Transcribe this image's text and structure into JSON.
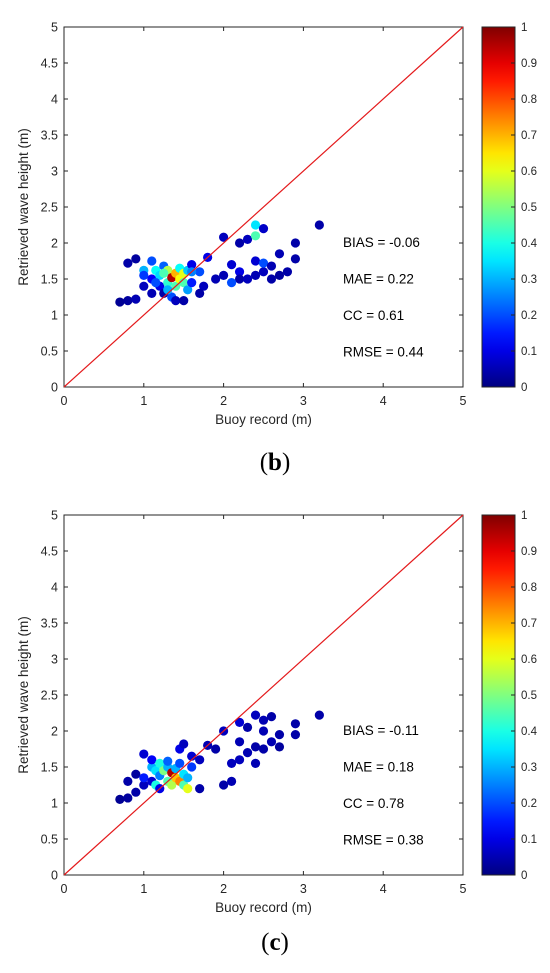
{
  "chart_data": [
    {
      "type": "scatter",
      "caption": "(b)",
      "xlabel": "Buoy record (m)",
      "ylabel": "Retrieved wave height (m)",
      "xlim": [
        0,
        5
      ],
      "ylim": [
        0,
        5
      ],
      "xticks": [
        "0",
        "1",
        "2",
        "3",
        "4",
        "5"
      ],
      "yticks": [
        "0",
        "0.5",
        "1",
        "1.5",
        "2",
        "2.5",
        "3",
        "3.5",
        "4",
        "4.5",
        "5"
      ],
      "reference_line": "y = x",
      "reference_color": "#e41a1c",
      "colormap": "jet",
      "colorbar_ticks": [
        "0",
        "0.1",
        "0.2",
        "0.3",
        "0.4",
        "0.5",
        "0.6",
        "0.7",
        "0.8",
        "0.9",
        "1"
      ],
      "stats": [
        "BIAS = -0.06",
        "MAE = 0.22",
        "CC = 0.61",
        "RMSE = 0.44"
      ],
      "points": [
        [
          0.7,
          1.18,
          0.02
        ],
        [
          0.8,
          1.2,
          0.03
        ],
        [
          0.9,
          1.22,
          0.05
        ],
        [
          0.8,
          1.72,
          0.04
        ],
        [
          0.9,
          1.78,
          0.03
        ],
        [
          1.0,
          1.4,
          0.06
        ],
        [
          1.0,
          1.62,
          0.3
        ],
        [
          1.0,
          1.55,
          0.18
        ],
        [
          1.1,
          1.3,
          0.05
        ],
        [
          1.1,
          1.5,
          0.12
        ],
        [
          1.1,
          1.75,
          0.2
        ],
        [
          1.15,
          1.62,
          0.38
        ],
        [
          1.2,
          1.4,
          0.1
        ],
        [
          1.2,
          1.55,
          0.34
        ],
        [
          1.25,
          1.68,
          0.22
        ],
        [
          1.25,
          1.3,
          0.04
        ],
        [
          1.3,
          1.45,
          0.42
        ],
        [
          1.3,
          1.62,
          0.55
        ],
        [
          1.35,
          1.52,
          0.95
        ],
        [
          1.35,
          1.25,
          0.2
        ],
        [
          1.4,
          1.58,
          0.7
        ],
        [
          1.4,
          1.4,
          0.45
        ],
        [
          1.45,
          1.5,
          0.62
        ],
        [
          1.45,
          1.65,
          0.38
        ],
        [
          1.5,
          1.45,
          0.45
        ],
        [
          1.5,
          1.58,
          0.6
        ],
        [
          1.55,
          1.35,
          0.28
        ],
        [
          1.55,
          1.62,
          0.32
        ],
        [
          1.4,
          1.2,
          0.06
        ],
        [
          1.5,
          1.2,
          0.04
        ],
        [
          1.6,
          1.45,
          0.15
        ],
        [
          1.6,
          1.7,
          0.1
        ],
        [
          1.7,
          1.6,
          0.2
        ],
        [
          1.75,
          1.4,
          0.06
        ],
        [
          1.7,
          1.3,
          0.04
        ],
        [
          1.8,
          1.8,
          0.1
        ],
        [
          2.0,
          2.08,
          0.06
        ],
        [
          2.0,
          1.55,
          0.05
        ],
        [
          2.1,
          1.7,
          0.08
        ],
        [
          2.2,
          1.6,
          0.1
        ],
        [
          2.2,
          1.5,
          0.04
        ],
        [
          2.2,
          2.0,
          0.04
        ],
        [
          2.1,
          1.45,
          0.2
        ],
        [
          2.3,
          2.05,
          0.06
        ],
        [
          2.4,
          2.25,
          0.35
        ],
        [
          2.4,
          2.1,
          0.45
        ],
        [
          2.4,
          1.75,
          0.08
        ],
        [
          2.5,
          1.6,
          0.06
        ],
        [
          2.5,
          2.2,
          0.07
        ],
        [
          2.5,
          1.72,
          0.2
        ],
        [
          2.6,
          1.68,
          0.05
        ],
        [
          2.6,
          1.5,
          0.04
        ],
        [
          2.7,
          1.85,
          0.05
        ],
        [
          2.7,
          1.55,
          0.03
        ],
        [
          2.8,
          1.6,
          0.04
        ],
        [
          2.9,
          2.0,
          0.04
        ],
        [
          2.9,
          1.78,
          0.04
        ],
        [
          3.2,
          2.25,
          0.04
        ],
        [
          2.4,
          1.55,
          0.05
        ],
        [
          1.9,
          1.5,
          0.05
        ],
        [
          1.15,
          1.45,
          0.2
        ],
        [
          1.25,
          1.58,
          0.45
        ],
        [
          1.6,
          1.6,
          0.25
        ],
        [
          1.3,
          1.35,
          0.3
        ],
        [
          2.3,
          1.5,
          0.06
        ]
      ]
    },
    {
      "type": "scatter",
      "caption": "(c)",
      "xlabel": "Buoy record (m)",
      "ylabel": "Retrieved wave height (m)",
      "xlim": [
        0,
        5
      ],
      "ylim": [
        0,
        5
      ],
      "xticks": [
        "0",
        "1",
        "2",
        "3",
        "4",
        "5"
      ],
      "yticks": [
        "0",
        "0.5",
        "1",
        "1.5",
        "2",
        "2.5",
        "3",
        "3.5",
        "4",
        "4.5",
        "5"
      ],
      "reference_line": "y = x",
      "reference_color": "#e41a1c",
      "colormap": "jet",
      "colorbar_ticks": [
        "0",
        "0.1",
        "0.2",
        "0.3",
        "0.4",
        "0.5",
        "0.6",
        "0.7",
        "0.8",
        "0.9",
        "1"
      ],
      "stats": [
        "BIAS = -0.11",
        "MAE = 0.18",
        "CC = 0.78",
        "RMSE = 0.38"
      ],
      "points": [
        [
          0.7,
          1.05,
          0.02
        ],
        [
          0.8,
          1.07,
          0.03
        ],
        [
          0.9,
          1.15,
          0.04
        ],
        [
          0.8,
          1.3,
          0.04
        ],
        [
          0.9,
          1.4,
          0.03
        ],
        [
          1.0,
          1.25,
          0.06
        ],
        [
          1.0,
          1.68,
          0.08
        ],
        [
          1.0,
          1.35,
          0.15
        ],
        [
          1.1,
          1.3,
          0.08
        ],
        [
          1.1,
          1.5,
          0.3
        ],
        [
          1.1,
          1.6,
          0.12
        ],
        [
          1.15,
          1.45,
          0.35
        ],
        [
          1.2,
          1.38,
          0.25
        ],
        [
          1.2,
          1.55,
          0.4
        ],
        [
          1.25,
          1.45,
          0.5
        ],
        [
          1.3,
          1.3,
          0.45
        ],
        [
          1.3,
          1.5,
          0.3
        ],
        [
          1.35,
          1.42,
          0.95
        ],
        [
          1.35,
          1.25,
          0.55
        ],
        [
          1.4,
          1.35,
          0.68
        ],
        [
          1.4,
          1.48,
          0.3
        ],
        [
          1.45,
          1.3,
          0.75
        ],
        [
          1.45,
          1.55,
          0.2
        ],
        [
          1.5,
          1.4,
          0.35
        ],
        [
          1.5,
          1.25,
          0.45
        ],
        [
          1.55,
          1.35,
          0.3
        ],
        [
          1.45,
          1.75,
          0.1
        ],
        [
          1.5,
          1.82,
          0.06
        ],
        [
          1.6,
          1.5,
          0.18
        ],
        [
          1.6,
          1.65,
          0.08
        ],
        [
          1.7,
          1.6,
          0.06
        ],
        [
          1.7,
          1.2,
          0.04
        ],
        [
          1.8,
          1.8,
          0.05
        ],
        [
          1.9,
          1.75,
          0.04
        ],
        [
          2.0,
          2.0,
          0.06
        ],
        [
          2.0,
          1.25,
          0.04
        ],
        [
          2.1,
          1.3,
          0.05
        ],
        [
          2.1,
          1.55,
          0.06
        ],
        [
          2.2,
          2.12,
          0.08
        ],
        [
          2.2,
          1.85,
          0.05
        ],
        [
          2.3,
          1.7,
          0.05
        ],
        [
          2.3,
          2.05,
          0.04
        ],
        [
          2.4,
          2.22,
          0.06
        ],
        [
          2.4,
          1.78,
          0.04
        ],
        [
          2.5,
          2.15,
          0.05
        ],
        [
          2.5,
          2.0,
          0.05
        ],
        [
          2.5,
          1.75,
          0.04
        ],
        [
          2.6,
          2.2,
          0.04
        ],
        [
          2.6,
          1.85,
          0.05
        ],
        [
          2.7,
          1.95,
          0.04
        ],
        [
          2.7,
          1.78,
          0.03
        ],
        [
          2.9,
          2.1,
          0.04
        ],
        [
          2.9,
          1.95,
          0.04
        ],
        [
          3.2,
          2.22,
          0.04
        ],
        [
          2.4,
          1.55,
          0.05
        ],
        [
          1.15,
          1.25,
          0.4
        ],
        [
          1.3,
          1.58,
          0.22
        ],
        [
          1.55,
          1.2,
          0.6
        ],
        [
          1.2,
          1.2,
          0.1
        ],
        [
          2.2,
          1.6,
          0.06
        ]
      ]
    }
  ]
}
